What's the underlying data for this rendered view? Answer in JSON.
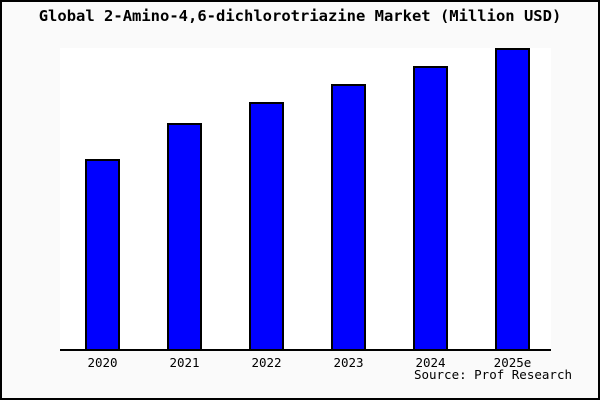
{
  "title": "Global 2-Amino-4,6-dichlorotriazine Market (Million USD)",
  "source_text": "Source: Prof Research",
  "colors": {
    "background": "#fafafa",
    "plot_background": "#ffffff",
    "bar_fill": "#0000ff",
    "bar_border": "#000000",
    "axis_line": "#000000",
    "text": "#000000",
    "frame_border": "#000000"
  },
  "chart_data": {
    "type": "bar",
    "title": "Global 2-Amino-4,6-dichlorotriazine Market (Million USD)",
    "categories": [
      "2020",
      "2021",
      "2022",
      "2023",
      "2024",
      "2025e"
    ],
    "values": [
      63,
      75,
      82,
      88,
      94,
      100
    ],
    "value_scale": "relative index estimated from bar pixel heights; no y-axis tick labels shown (2025e bar = 100)",
    "xlabel": "",
    "ylabel": "",
    "ylim": [
      0,
      100
    ],
    "grid": false,
    "legend": false,
    "annotations": [
      "Source: Prof Research"
    ]
  }
}
